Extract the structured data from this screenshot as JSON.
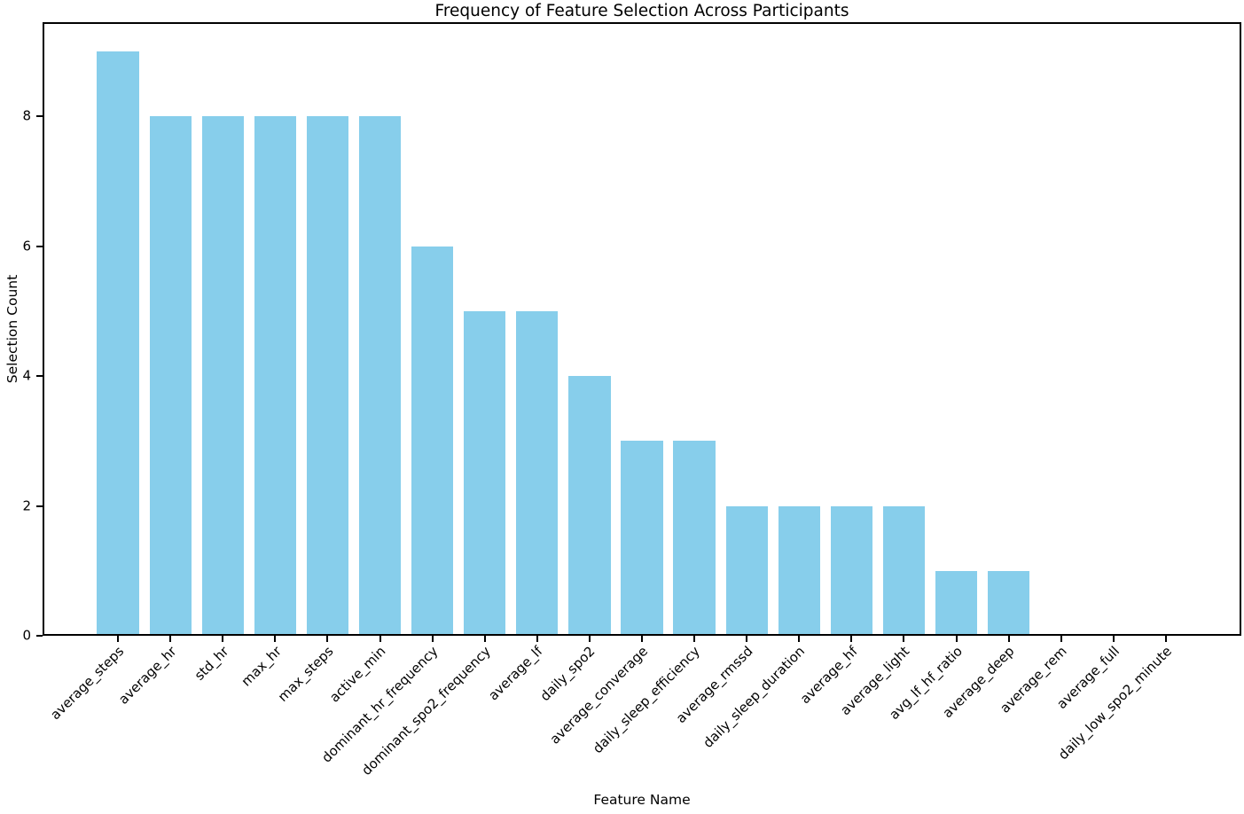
{
  "chart_data": {
    "type": "bar",
    "title": "Frequency of Feature Selection Across Participants",
    "xlabel": "Feature Name",
    "ylabel": "Selection Count",
    "categories": [
      "average_steps",
      "average_hr",
      "std_hr",
      "max_hr",
      "max_steps",
      "active_min",
      "dominant_hr_frequency",
      "dominant_spo2_frequency",
      "average_lf",
      "daily_spo2",
      "average_converage",
      "daily_sleep_efficiency",
      "average_rmssd",
      "daily_sleep_duration",
      "average_hf",
      "average_light",
      "avg_lf_hf_ratio",
      "average_deep",
      "average_rem",
      "average_full",
      "daily_low_spo2_minute"
    ],
    "values": [
      9,
      8,
      8,
      8,
      8,
      8,
      6,
      5,
      5,
      4,
      3,
      3,
      2,
      2,
      2,
      2,
      1,
      1,
      0,
      0,
      0
    ],
    "yticks": [
      0,
      2,
      4,
      6,
      8
    ],
    "ylim": [
      0,
      9.45
    ],
    "xlim": [
      -1.44,
      21.44
    ],
    "bar_relative_width": 0.8,
    "x_tick_rotation_deg": 45,
    "grid": false,
    "legend": false,
    "bar_color": "#87CEEB",
    "axis_color": "#000000",
    "background_color": "#ffffff"
  }
}
